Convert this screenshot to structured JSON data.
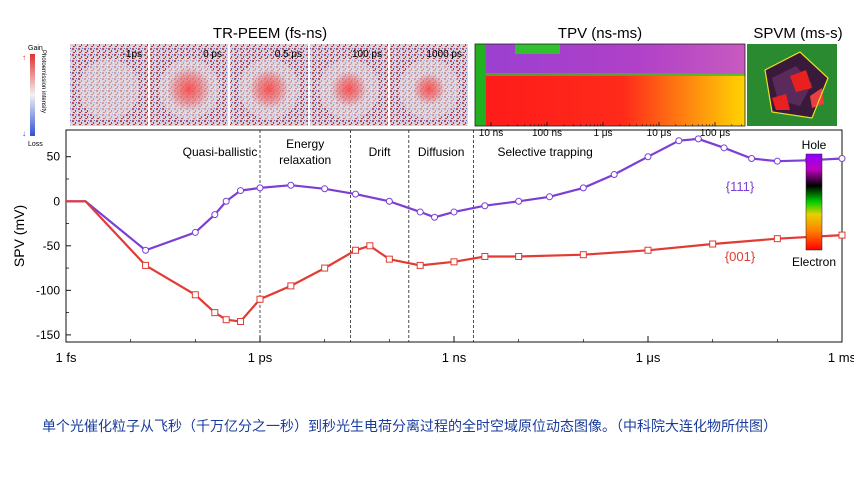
{
  "panels": {
    "trpeem": {
      "title": "TR-PEEM (fs-ns)",
      "frames": [
        "-1ps",
        "0 ps",
        "0.5 ps",
        "100 ps",
        "1000 ps"
      ],
      "colorbar_top": "Gain",
      "colorbar_bottom": "Loss",
      "colorbar_label": "Photoemission intensity"
    },
    "tpv": {
      "title": "TPV (ns-ms)",
      "ticks": [
        "10 ns",
        "100 ns",
        "1 μs",
        "10 μs",
        "100 μs"
      ]
    },
    "spvm": {
      "title": "SPVM (ms-s)"
    }
  },
  "chart_data": {
    "type": "scatter",
    "ylabel": "SPV (mV)",
    "xlabel": "",
    "x_scale": "log",
    "x_ticks": [
      "1 fs",
      "1 ps",
      "1 ns",
      "1 μs",
      "1 ms"
    ],
    "y_ticks": [
      50,
      0,
      -50,
      -100,
      -150
    ],
    "ylim": [
      -158,
      80
    ],
    "regions": [
      "Quasi-ballistic",
      "Energy relaxation",
      "Drift",
      "Diffusion",
      "Selective trapping"
    ],
    "region_boundaries_s": [
      1e-12,
      2.5e-11,
      2e-10,
      2e-09
    ],
    "series": [
      {
        "name": "{111}",
        "color": "#7b3fd6",
        "points": [
          {
            "x": "1e-15",
            "y": 0
          },
          {
            "x": "2e-15",
            "y": 0
          },
          {
            "x": "1.7e-14",
            "y": -55
          },
          {
            "x": "1e-13",
            "y": -35
          },
          {
            "x": "2e-13",
            "y": -15
          },
          {
            "x": "3e-13",
            "y": 0
          },
          {
            "x": "5e-13",
            "y": 12
          },
          {
            "x": "1e-12",
            "y": 15
          },
          {
            "x": "3e-12",
            "y": 18
          },
          {
            "x": "1e-11",
            "y": 14
          },
          {
            "x": "3e-11",
            "y": 8
          },
          {
            "x": "1e-10",
            "y": 0
          },
          {
            "x": "3e-10",
            "y": -12
          },
          {
            "x": "5e-10",
            "y": -18
          },
          {
            "x": "1e-9",
            "y": -12
          },
          {
            "x": "3e-9",
            "y": -5
          },
          {
            "x": "1e-8",
            "y": 0
          },
          {
            "x": "3e-8",
            "y": 5
          },
          {
            "x": "1e-7",
            "y": 15
          },
          {
            "x": "3e-7",
            "y": 30
          },
          {
            "x": "1e-6",
            "y": 50
          },
          {
            "x": "3e-6",
            "y": 68
          },
          {
            "x": "6e-6",
            "y": 70
          },
          {
            "x": "1.5e-5",
            "y": 60
          },
          {
            "x": "4e-5",
            "y": 48
          },
          {
            "x": "1e-4",
            "y": 45
          },
          {
            "x": "3e-4",
            "y": 46
          },
          {
            "x": "1e-3",
            "y": 48
          }
        ]
      },
      {
        "name": "{001}",
        "color": "#e23b33",
        "points": [
          {
            "x": "1e-15",
            "y": 0
          },
          {
            "x": "2e-15",
            "y": 0
          },
          {
            "x": "1.7e-14",
            "y": -72
          },
          {
            "x": "1e-13",
            "y": -105
          },
          {
            "x": "2e-13",
            "y": -125
          },
          {
            "x": "3e-13",
            "y": -133
          },
          {
            "x": "5e-13",
            "y": -135
          },
          {
            "x": "1e-12",
            "y": -110
          },
          {
            "x": "3e-12",
            "y": -95
          },
          {
            "x": "1e-11",
            "y": -75
          },
          {
            "x": "3e-11",
            "y": -55
          },
          {
            "x": "5e-11",
            "y": -50
          },
          {
            "x": "1e-10",
            "y": -65
          },
          {
            "x": "3e-10",
            "y": -72
          },
          {
            "x": "1e-9",
            "y": -68
          },
          {
            "x": "3e-9",
            "y": -62
          },
          {
            "x": "1e-8",
            "y": -62
          },
          {
            "x": "1e-7",
            "y": -60
          },
          {
            "x": "1e-6",
            "y": -55
          },
          {
            "x": "1e-5",
            "y": -48
          },
          {
            "x": "1e-4",
            "y": -42
          },
          {
            "x": "1e-3",
            "y": -38
          }
        ]
      }
    ],
    "legend": {
      "hole": "Hole",
      "electron": "Electron",
      "colors": [
        "#8f00ff",
        "#c000c0",
        "#000000",
        "#00d000",
        "#e8d000",
        "#ff8000",
        "#ff0000"
      ]
    }
  },
  "caption": "单个光催化粒子从飞秒（千万亿分之一秒）到秒光生电荷分离过程的全时空域原位动态图像。（中科院大连化物所供图）"
}
